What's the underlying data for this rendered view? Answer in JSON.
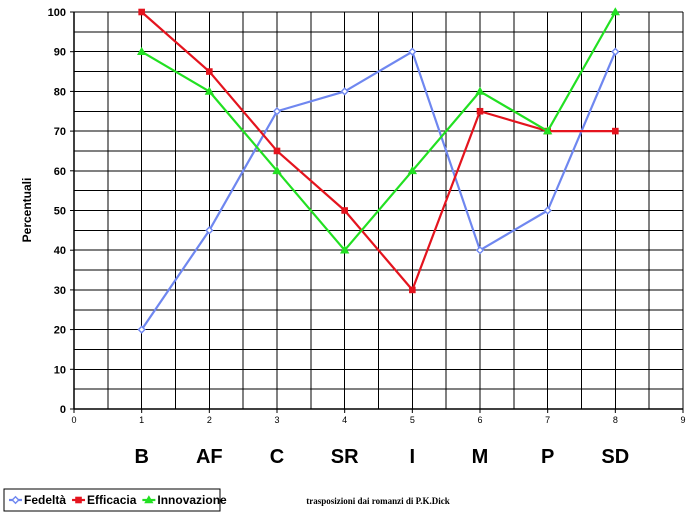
{
  "chart_data": {
    "type": "line",
    "x": [
      1,
      2,
      3,
      4,
      5,
      6,
      7,
      8
    ],
    "xlim": [
      0,
      9
    ],
    "x_ticks": [
      "0",
      "1",
      "2",
      "3",
      "4",
      "5",
      "6",
      "7",
      "8",
      "9"
    ],
    "ylim": [
      0,
      100
    ],
    "y_ticks": [
      "0",
      "10",
      "20",
      "30",
      "40",
      "50",
      "60",
      "70",
      "80",
      "90",
      "100"
    ],
    "ylabel": "Percentuali",
    "categories": [
      "B",
      "AF",
      "C",
      "SR",
      "I",
      "M",
      "P",
      "SD"
    ],
    "caption": "trasposizioni dai romanzi di P.K.Dick",
    "grid": true,
    "legend_position": "bottom-left",
    "series": [
      {
        "name": "Fedeltà",
        "color": "#6f87f0",
        "marker": "diamond",
        "values": [
          20,
          45,
          75,
          80,
          90,
          40,
          50,
          90
        ]
      },
      {
        "name": "Efficacia",
        "color": "#e4141e",
        "marker": "square",
        "values": [
          100,
          85,
          65,
          50,
          30,
          75,
          70,
          70
        ]
      },
      {
        "name": "Innovazione",
        "color": "#22e022",
        "marker": "triangle",
        "values": [
          90,
          80,
          60,
          40,
          60,
          80,
          70,
          100
        ]
      }
    ]
  }
}
